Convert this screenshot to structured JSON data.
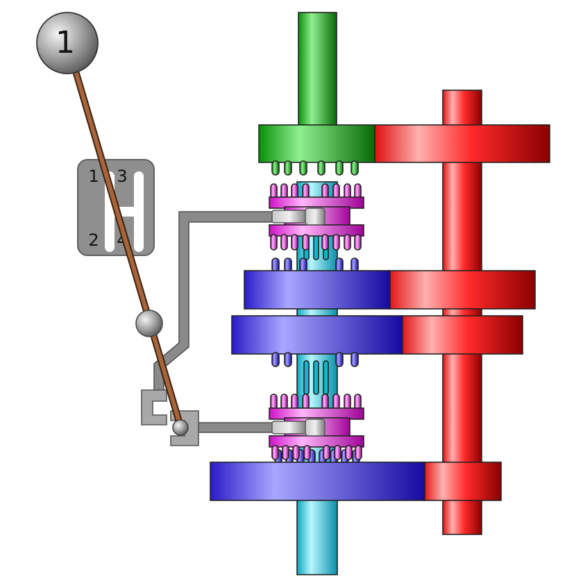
{
  "knob": {
    "label": "1"
  },
  "gate": {
    "labels": {
      "first": "1",
      "second": "2",
      "third": "3",
      "fourth": "4"
    }
  },
  "colors": {
    "input_shaft": "#1db31d",
    "output_shaft": "#22c8dc",
    "countershaft": "#e8141e",
    "gears": "#2b1fd4",
    "synchro": "#e020d8",
    "linkage": "#8a8a8a",
    "lever": "#9a5a2e"
  }
}
